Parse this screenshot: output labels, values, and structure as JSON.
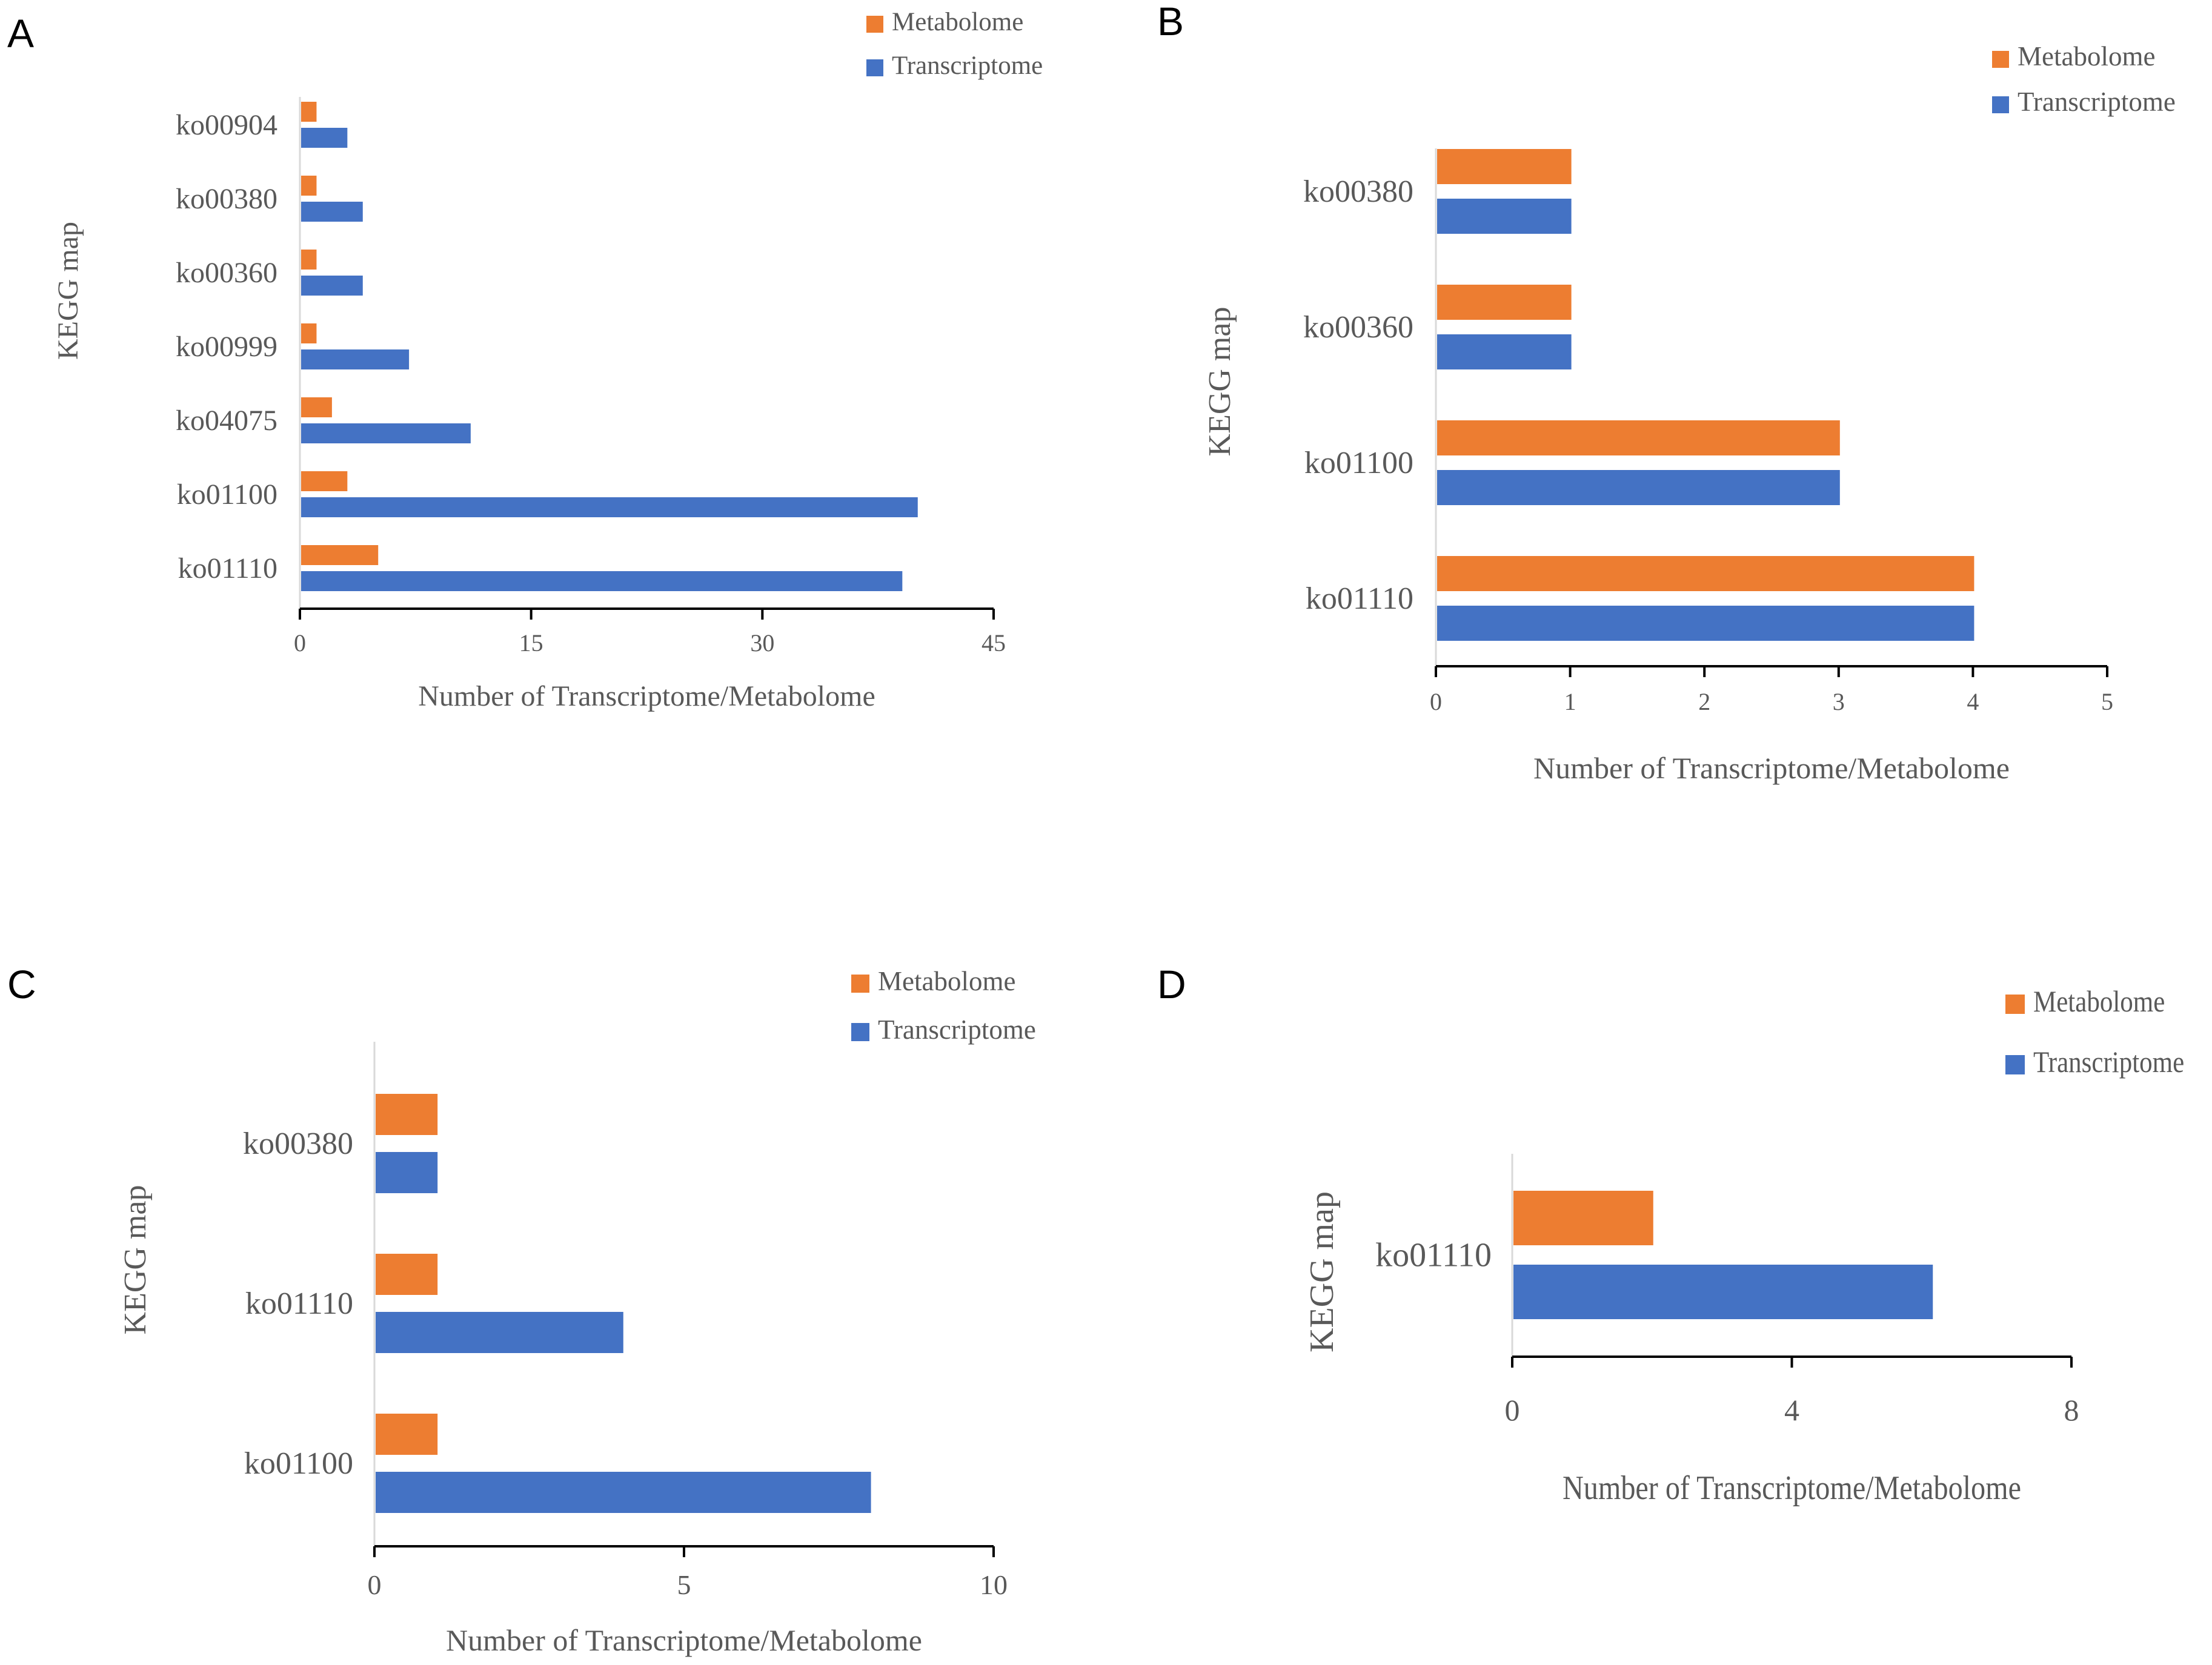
{
  "colors": {
    "metabolome": "#ED7D31",
    "transcriptome": "#4472C4",
    "axis": "#595959",
    "axis_line": "#d9d9d9"
  },
  "chart_data": [
    {
      "panel": "A",
      "type": "bar",
      "orientation": "horizontal",
      "categories": [
        "ko00904",
        "ko00380",
        "ko00360",
        "ko00999",
        "ko04075",
        "ko01100",
        "ko01110"
      ],
      "series": [
        {
          "name": "Metabolome",
          "values": [
            1,
            1,
            1,
            1,
            2,
            3,
            5
          ]
        },
        {
          "name": "Transcriptome",
          "values": [
            3,
            4,
            4,
            7,
            11,
            40,
            39
          ]
        }
      ],
      "xlabel": "Number of Transcriptome/Metabolome",
      "ylabel": "KEGG map",
      "xlim": [
        0,
        45
      ],
      "xticks": [
        0,
        15,
        30,
        45
      ],
      "legend": "top-right",
      "grid": false
    },
    {
      "panel": "B",
      "type": "bar",
      "orientation": "horizontal",
      "categories": [
        "ko00380",
        "ko00360",
        "ko01100",
        "ko01110"
      ],
      "series": [
        {
          "name": "Metabolome",
          "values": [
            1,
            1,
            3,
            4
          ]
        },
        {
          "name": "Transcriptome",
          "values": [
            1,
            1,
            3,
            4
          ]
        }
      ],
      "xlabel": "Number of Transcriptome/Metabolome",
      "ylabel": "KEGG map",
      "xlim": [
        0,
        5
      ],
      "xticks": [
        0,
        1,
        2,
        3,
        4,
        5
      ],
      "legend": "top-right",
      "grid": false
    },
    {
      "panel": "C",
      "type": "bar",
      "orientation": "horizontal",
      "categories": [
        "ko00380",
        "ko01110",
        "ko01100"
      ],
      "series": [
        {
          "name": "Metabolome",
          "values": [
            1,
            1,
            1
          ]
        },
        {
          "name": "Transcriptome",
          "values": [
            1,
            4,
            8
          ]
        }
      ],
      "xlabel": "Number of Transcriptome/Metabolome",
      "ylabel": "KEGG map",
      "xlim": [
        0,
        10
      ],
      "xticks": [
        0,
        5,
        10
      ],
      "legend": "top-right",
      "grid": false
    },
    {
      "panel": "D",
      "type": "bar",
      "orientation": "horizontal",
      "categories": [
        "ko01110"
      ],
      "series": [
        {
          "name": "Metabolome",
          "values": [
            2
          ]
        },
        {
          "name": "Transcriptome",
          "values": [
            6
          ]
        }
      ],
      "xlabel": "Number of Transcriptome/Metabolome",
      "ylabel": "KEGG map",
      "xlim": [
        0,
        8
      ],
      "xticks": [
        0,
        4,
        8
      ],
      "legend": "top-right",
      "grid": false
    }
  ]
}
